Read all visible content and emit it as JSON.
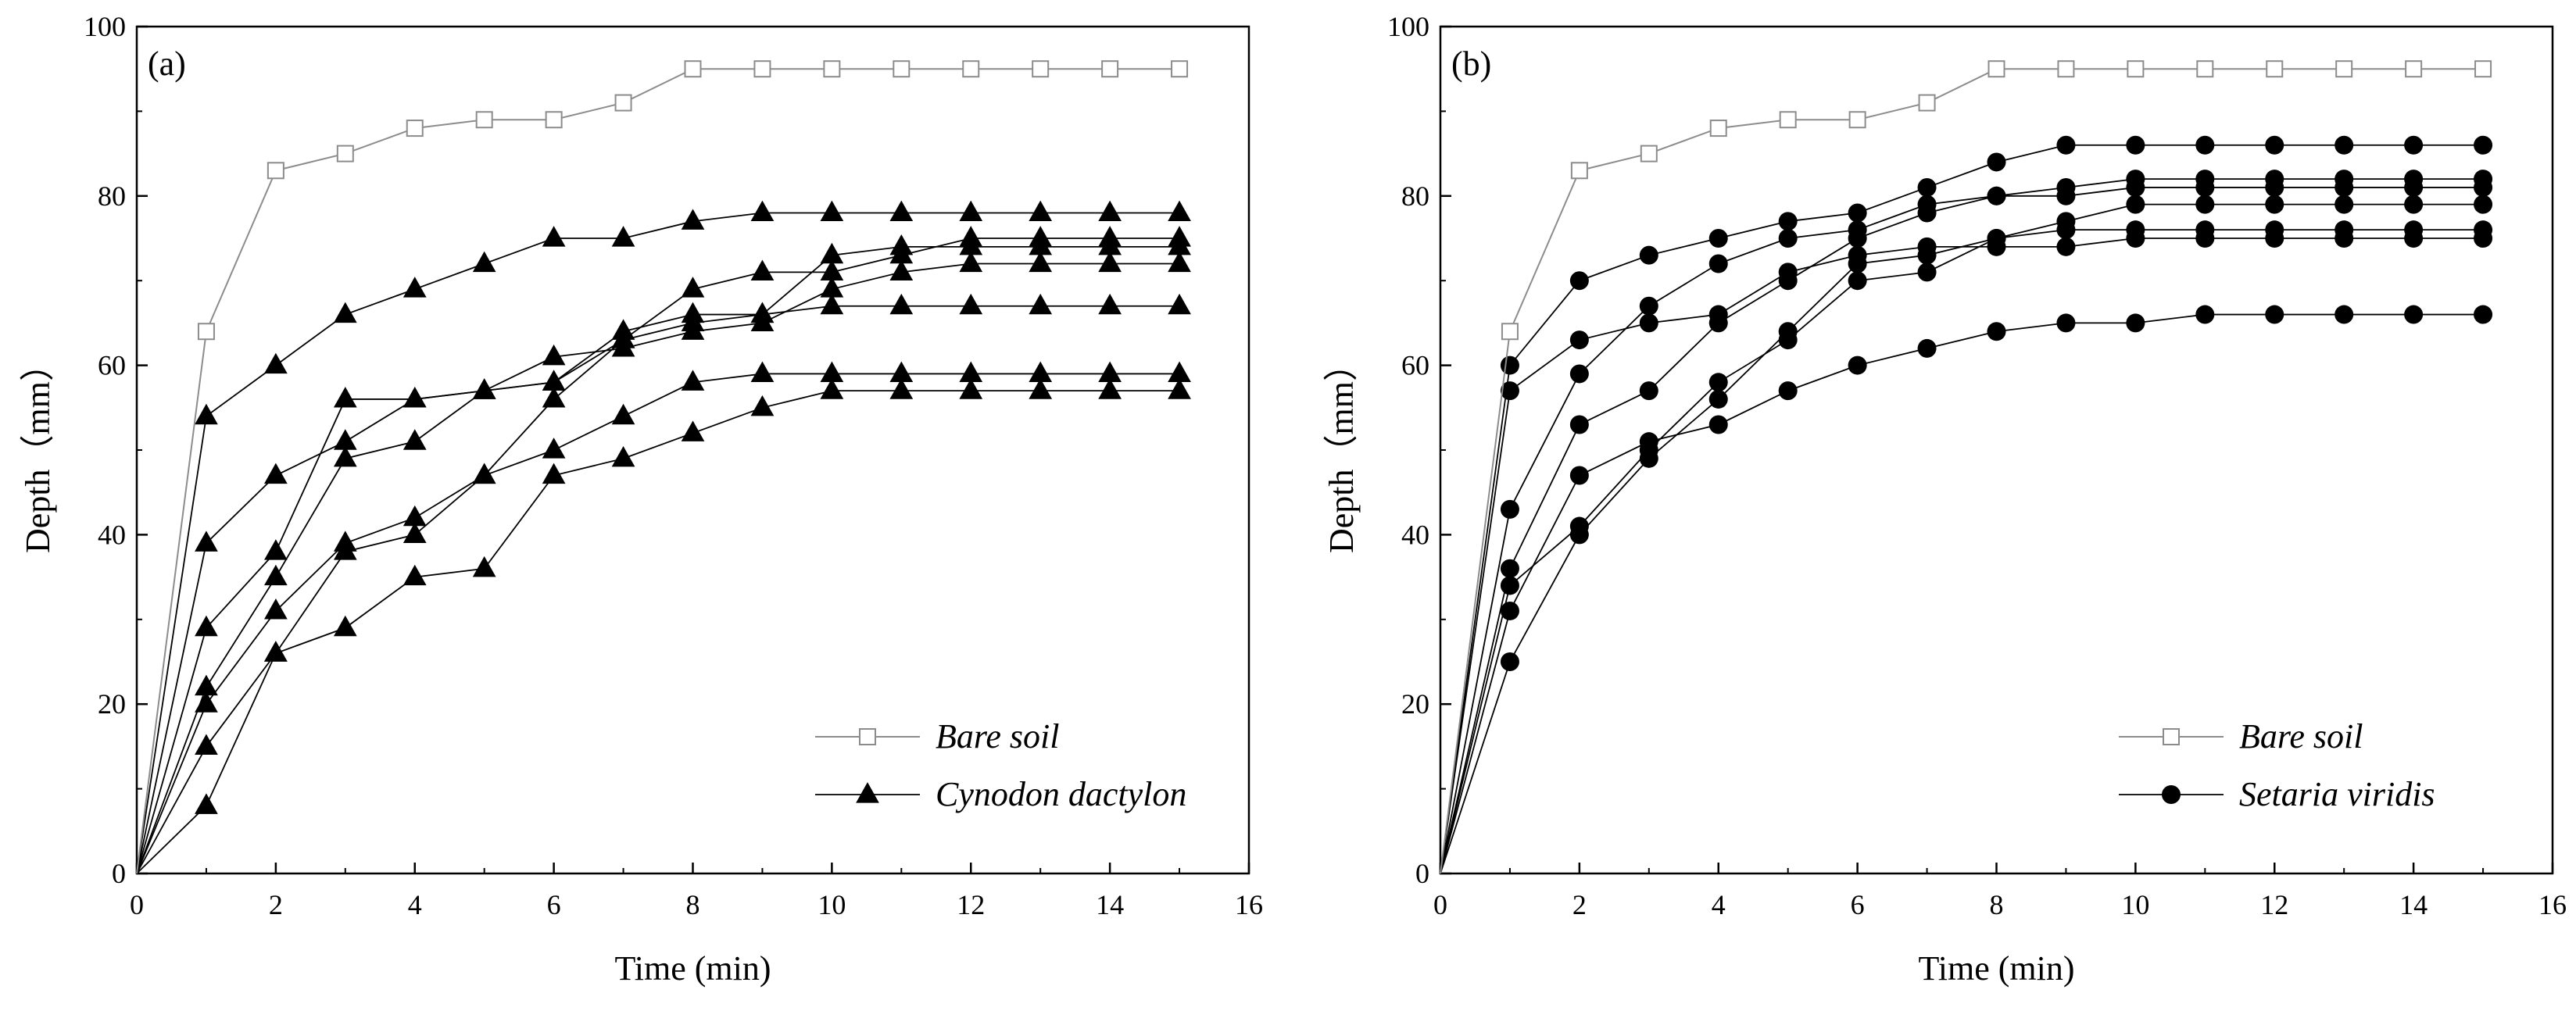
{
  "colors": {
    "axis": "#000000",
    "bare_soil": "#8c8c8c",
    "plant": "#000000",
    "background": "#ffffff"
  },
  "chart_data": [
    {
      "type": "line",
      "panel_label": "(a)",
      "xlabel": "Time (min)",
      "ylabel": "Depth（mm）",
      "xlim": [
        0,
        16
      ],
      "ylim": [
        0,
        100
      ],
      "xticks": [
        0,
        2,
        4,
        6,
        8,
        10,
        12,
        14,
        16
      ],
      "yticks": [
        0,
        20,
        40,
        60,
        80,
        100
      ],
      "legend_position": "bottom-right",
      "legend": [
        {
          "label": "Bare soil",
          "marker": "open-square"
        },
        {
          "label": "Cynodon dactylon",
          "marker": "filled-triangle"
        }
      ],
      "x": [
        0,
        1,
        2,
        3,
        4,
        5,
        6,
        7,
        8,
        9,
        10,
        11,
        12,
        13,
        14,
        15
      ],
      "series": [
        {
          "name": "Bare soil",
          "group": "bare",
          "values": [
            0,
            64,
            83,
            85,
            88,
            89,
            89,
            91,
            95,
            95,
            95,
            95,
            95,
            95,
            95,
            95
          ]
        },
        {
          "name": "Cynodon dactylon 1",
          "group": "plant",
          "values": [
            0,
            54,
            60,
            66,
            69,
            72,
            75,
            75,
            77,
            78,
            78,
            78,
            78,
            78,
            78,
            78
          ]
        },
        {
          "name": "Cynodon dactylon 2",
          "group": "plant",
          "values": [
            0,
            39,
            47,
            51,
            56,
            57,
            58,
            63,
            65,
            66,
            73,
            74,
            74,
            74,
            74,
            74
          ]
        },
        {
          "name": "Cynodon dactylon 3",
          "group": "plant",
          "values": [
            0,
            29,
            38,
            56,
            56,
            57,
            58,
            64,
            66,
            66,
            67,
            67,
            67,
            67,
            67,
            67
          ]
        },
        {
          "name": "Cynodon dactylon 4",
          "group": "plant",
          "values": [
            0,
            22,
            35,
            49,
            51,
            57,
            61,
            62,
            64,
            65,
            69,
            71,
            72,
            72,
            72,
            72
          ]
        },
        {
          "name": "Cynodon dactylon 5",
          "group": "plant",
          "values": [
            0,
            20,
            31,
            39,
            42,
            47,
            56,
            63,
            69,
            71,
            71,
            73,
            75,
            75,
            75,
            75
          ]
        },
        {
          "name": "Cynodon dactylon 6",
          "group": "plant",
          "values": [
            0,
            15,
            26,
            38,
            40,
            47,
            50,
            54,
            58,
            59,
            59,
            59,
            59,
            59,
            59,
            59
          ]
        },
        {
          "name": "Cynodon dactylon 7",
          "group": "plant",
          "values": [
            0,
            8,
            26,
            29,
            35,
            36,
            47,
            49,
            52,
            55,
            57,
            57,
            57,
            57,
            57,
            57
          ]
        }
      ]
    },
    {
      "type": "line",
      "panel_label": "(b)",
      "xlabel": "Time (min)",
      "ylabel": "Depth（mm）",
      "xlim": [
        0,
        16
      ],
      "ylim": [
        0,
        100
      ],
      "xticks": [
        0,
        2,
        4,
        6,
        8,
        10,
        12,
        14,
        16
      ],
      "yticks": [
        0,
        20,
        40,
        60,
        80,
        100
      ],
      "legend_position": "bottom-right",
      "legend": [
        {
          "label": "Bare soil",
          "marker": "open-square"
        },
        {
          "label": "Setaria viridis",
          "marker": "filled-circle"
        }
      ],
      "x": [
        0,
        1,
        2,
        3,
        4,
        5,
        6,
        7,
        8,
        9,
        10,
        11,
        12,
        13,
        14,
        15
      ],
      "series": [
        {
          "name": "Bare soil",
          "group": "bare",
          "values": [
            0,
            64,
            83,
            85,
            88,
            89,
            89,
            91,
            95,
            95,
            95,
            95,
            95,
            95,
            95,
            95
          ]
        },
        {
          "name": "Setaria viridis 1",
          "group": "plant",
          "values": [
            0,
            60,
            70,
            73,
            75,
            77,
            78,
            81,
            84,
            86,
            86,
            86,
            86,
            86,
            86,
            86
          ]
        },
        {
          "name": "Setaria viridis 2",
          "group": "plant",
          "values": [
            0,
            57,
            63,
            65,
            66,
            71,
            73,
            74,
            74,
            74,
            75,
            75,
            75,
            75,
            75,
            75
          ]
        },
        {
          "name": "Setaria viridis 3",
          "group": "plant",
          "values": [
            0,
            43,
            59,
            67,
            72,
            75,
            76,
            79,
            80,
            80,
            81,
            81,
            81,
            81,
            81,
            81
          ]
        },
        {
          "name": "Setaria viridis 4",
          "group": "plant",
          "values": [
            0,
            36,
            53,
            57,
            65,
            70,
            75,
            78,
            80,
            81,
            82,
            82,
            82,
            82,
            82,
            82
          ]
        },
        {
          "name": "Setaria viridis 5",
          "group": "plant",
          "values": [
            0,
            34,
            41,
            50,
            58,
            63,
            70,
            71,
            75,
            77,
            79,
            79,
            79,
            79,
            79,
            79
          ]
        },
        {
          "name": "Setaria viridis 6",
          "group": "plant",
          "values": [
            0,
            31,
            47,
            51,
            53,
            57,
            60,
            62,
            64,
            65,
            65,
            66,
            66,
            66,
            66,
            66
          ]
        },
        {
          "name": "Setaria viridis 7",
          "group": "plant",
          "values": [
            0,
            25,
            40,
            49,
            56,
            64,
            72,
            73,
            75,
            76,
            76,
            76,
            76,
            76,
            76,
            76
          ]
        }
      ]
    }
  ]
}
